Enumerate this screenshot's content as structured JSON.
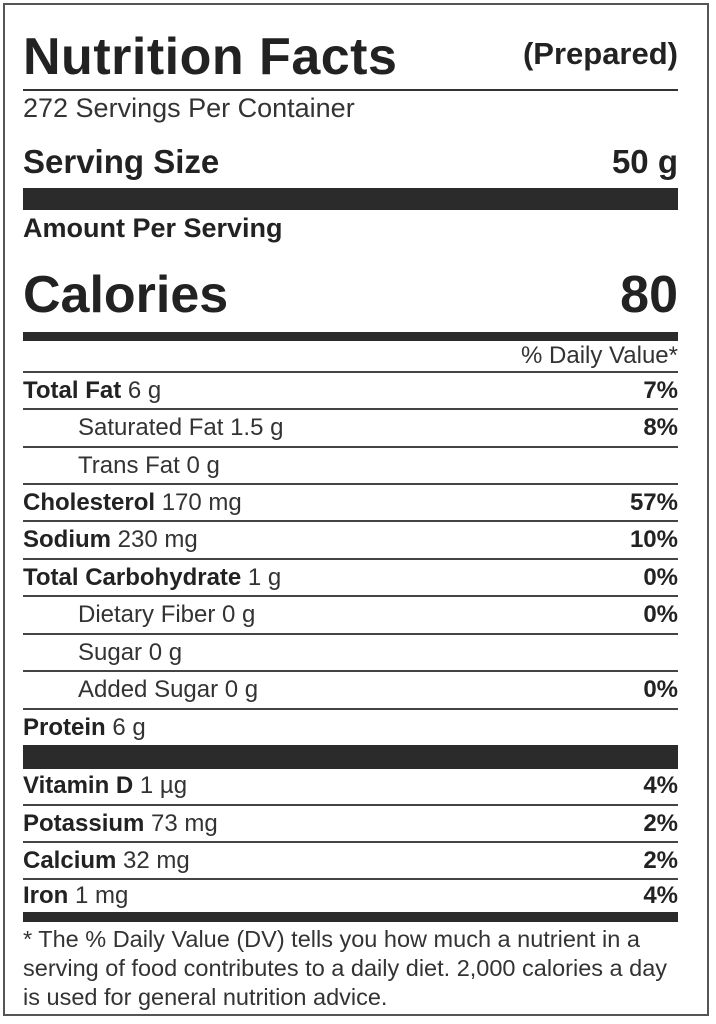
{
  "title": "Nutrition Facts",
  "subtitle": "(Prepared)",
  "servings_per_container": "272 Servings Per Container",
  "serving_size": {
    "label": "Serving Size",
    "value": "50 g"
  },
  "amount_per_serving": "Amount Per Serving",
  "calories": {
    "label": "Calories",
    "value": "80"
  },
  "daily_value_header": "% Daily Value*",
  "nutrients": [
    {
      "name": "Total Fat",
      "amount": " 6 g",
      "dv": "7%"
    },
    {
      "name": "Saturated Fat 1.5 g",
      "amount": "",
      "dv": "8%"
    },
    {
      "name": "Trans Fat 0 g",
      "amount": "",
      "dv": ""
    },
    {
      "name": "Cholesterol",
      "amount": " 170 mg",
      "dv": "57%"
    },
    {
      "name": "Sodium",
      "amount": " 230 mg",
      "dv": "10%"
    },
    {
      "name": "Total Carbohydrate",
      "amount": " 1 g",
      "dv": "0%"
    },
    {
      "name": "Dietary Fiber 0 g",
      "amount": "",
      "dv": "0%"
    },
    {
      "name": "Sugar 0 g",
      "amount": "",
      "dv": ""
    },
    {
      "name": "Added Sugar 0 g",
      "amount": "",
      "dv": "0%"
    },
    {
      "name": "Protein",
      "amount": " 6 g",
      "dv": ""
    }
  ],
  "vitamins": [
    {
      "name": "Vitamin D",
      "amount": " 1 µg",
      "dv": "4%"
    },
    {
      "name": "Potassium",
      "amount": " 73 mg",
      "dv": "2%"
    },
    {
      "name": "Calcium",
      "amount": " 32 mg",
      "dv": "2%"
    },
    {
      "name": "Iron",
      "amount": " 1 mg",
      "dv": "4%"
    }
  ],
  "footnote": "* The % Daily Value (DV) tells you how much a nutrient in a serving of food contributes to a daily diet. 2,000 calories a day is used for general nutrition advice."
}
